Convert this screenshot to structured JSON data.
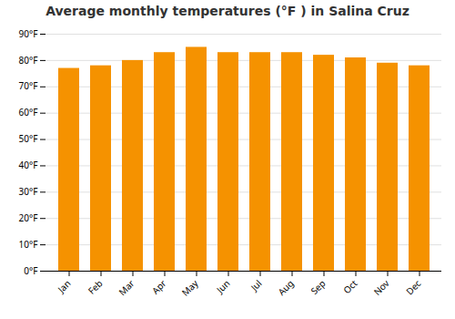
{
  "chart_data": {
    "type": "bar",
    "title": "Average monthly temperatures (°F ) in Salina Cruz",
    "categories": [
      "Jan",
      "Feb",
      "Mar",
      "Apr",
      "May",
      "Jun",
      "Jul",
      "Aug",
      "Sep",
      "Oct",
      "Nov",
      "Dec"
    ],
    "values": [
      77,
      78,
      80,
      83,
      85,
      83,
      83,
      83,
      82,
      81,
      79,
      78
    ],
    "color": "#F59200",
    "ylim": [
      0,
      90
    ],
    "yticks": [
      {
        "value": 0,
        "label": "0°F"
      },
      {
        "value": 10,
        "label": "10°F"
      },
      {
        "value": 20,
        "label": "20°F"
      },
      {
        "value": 30,
        "label": "30°F"
      },
      {
        "value": 40,
        "label": "40°F"
      },
      {
        "value": 50,
        "label": "50°F"
      },
      {
        "value": 60,
        "label": "60°F"
      },
      {
        "value": 70,
        "label": "70°F"
      },
      {
        "value": 80,
        "label": "80°F"
      },
      {
        "value": 90,
        "label": "90°F"
      }
    ],
    "grid": true
  }
}
